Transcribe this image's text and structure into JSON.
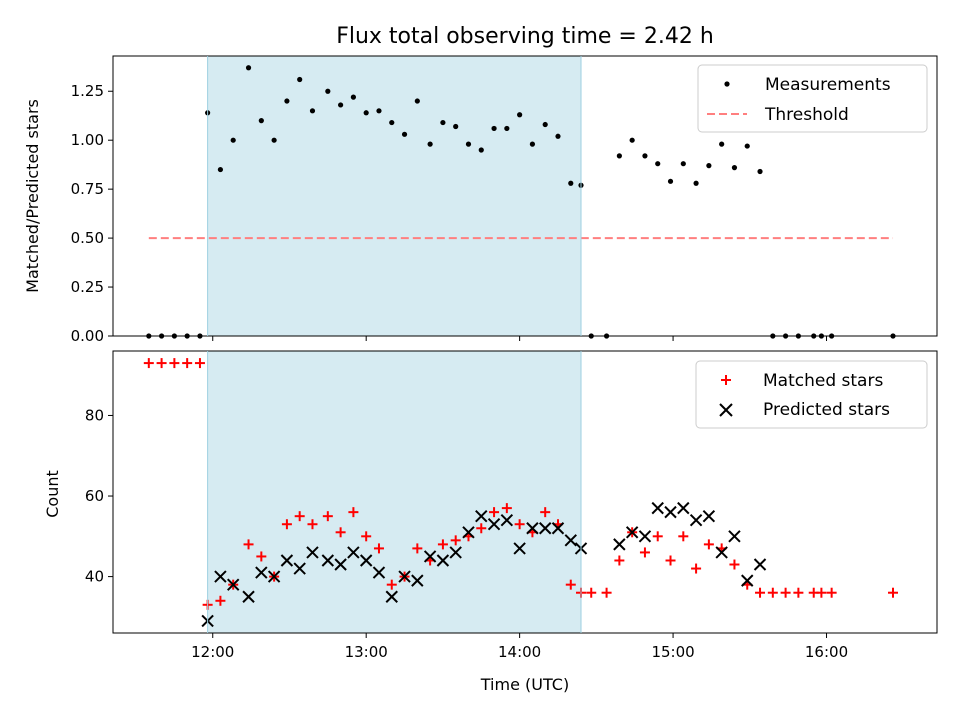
{
  "chart_data": [
    {
      "type": "scatter",
      "title": "Flux total observing time = 2.42 h",
      "ylabel": "Matched/Predicted stars",
      "xlim_hours": [
        11.35,
        16.72
      ],
      "ylim": [
        0,
        1.43
      ],
      "yticks": [
        "0.00",
        "0.25",
        "0.50",
        "0.75",
        "1.00",
        "1.25"
      ],
      "shaded_interval": [
        "11:58",
        "14:24"
      ],
      "shade_color": "#add8e6",
      "legend_position": "top-right",
      "series": [
        {
          "name": "Measurements",
          "marker": "dot",
          "color": "#000000",
          "x": [
            "11:35",
            "11:40",
            "11:45",
            "11:50",
            "11:55",
            "11:58",
            "12:03",
            "12:08",
            "12:14",
            "12:19",
            "12:24",
            "12:29",
            "12:34",
            "12:39",
            "12:45",
            "12:50",
            "12:55",
            "13:00",
            "13:05",
            "13:10",
            "13:15",
            "13:20",
            "13:25",
            "13:30",
            "13:35",
            "13:40",
            "13:45",
            "13:50",
            "13:55",
            "14:00",
            "14:05",
            "14:10",
            "14:15",
            "14:20",
            "14:24",
            "14:28",
            "14:34",
            "14:39",
            "14:44",
            "14:49",
            "14:54",
            "14:59",
            "15:04",
            "15:09",
            "15:14",
            "15:19",
            "15:24",
            "15:29",
            "15:34",
            "15:39",
            "15:44",
            "15:49",
            "15:55",
            "15:58",
            "16:02",
            "16:26"
          ],
          "y": [
            0,
            0,
            0,
            0,
            0,
            1.14,
            0.85,
            1.0,
            1.37,
            1.1,
            1.0,
            1.2,
            1.31,
            1.15,
            1.25,
            1.18,
            1.22,
            1.14,
            1.15,
            1.09,
            1.03,
            1.2,
            0.98,
            1.09,
            1.07,
            0.98,
            0.95,
            1.06,
            1.06,
            1.13,
            0.98,
            1.08,
            1.02,
            0.78,
            0.77,
            0,
            0,
            0.92,
            1.0,
            0.92,
            0.88,
            0.79,
            0.88,
            0.78,
            0.87,
            0.98,
            0.86,
            0.97,
            0.84,
            0,
            0,
            0,
            0,
            0,
            0,
            0
          ]
        },
        {
          "name": "Threshold",
          "marker": "dashed-line",
          "color": "#ff7f7f",
          "x": [
            "11:35",
            "16:26"
          ],
          "y": [
            0.5,
            0.5
          ]
        }
      ]
    },
    {
      "type": "scatter",
      "xlabel": "Time (UTC)",
      "ylabel": "Count",
      "xlim_hours": [
        11.35,
        16.72
      ],
      "ylim": [
        26,
        96
      ],
      "yticks": [
        "40",
        "60",
        "80"
      ],
      "xticks": [
        "12:00",
        "13:00",
        "14:00",
        "15:00",
        "16:00"
      ],
      "shaded_interval": [
        "11:58",
        "14:24"
      ],
      "shade_color": "#add8e6",
      "legend_position": "top-right",
      "series": [
        {
          "name": "Matched stars",
          "marker": "plus",
          "color": "#ff0000",
          "x": [
            "11:35",
            "11:40",
            "11:45",
            "11:50",
            "11:55",
            "11:58",
            "12:03",
            "12:08",
            "12:14",
            "12:19",
            "12:24",
            "12:29",
            "12:34",
            "12:39",
            "12:45",
            "12:50",
            "12:55",
            "13:00",
            "13:05",
            "13:10",
            "13:15",
            "13:20",
            "13:25",
            "13:30",
            "13:35",
            "13:40",
            "13:45",
            "13:50",
            "13:55",
            "14:00",
            "14:05",
            "14:10",
            "14:15",
            "14:20",
            "14:24",
            "14:28",
            "14:34",
            "14:39",
            "14:44",
            "14:49",
            "14:54",
            "14:59",
            "15:04",
            "15:09",
            "15:14",
            "15:19",
            "15:24",
            "15:29",
            "15:34",
            "15:39",
            "15:44",
            "15:49",
            "15:55",
            "15:58",
            "16:02",
            "16:26"
          ],
          "y": [
            93,
            93,
            93,
            93,
            93,
            33,
            34,
            38,
            48,
            45,
            40,
            53,
            55,
            53,
            55,
            51,
            56,
            50,
            47,
            38,
            40,
            47,
            44,
            48,
            49,
            50,
            52,
            56,
            57,
            53,
            51,
            56,
            53,
            38,
            36,
            36,
            36,
            44,
            51,
            46,
            50,
            44,
            50,
            42,
            48,
            47,
            43,
            38,
            36,
            36,
            36,
            36,
            36,
            36,
            36,
            36
          ]
        },
        {
          "name": "Predicted stars",
          "marker": "x",
          "color": "#000000",
          "x": [
            "11:58",
            "12:03",
            "12:08",
            "12:14",
            "12:19",
            "12:24",
            "12:29",
            "12:34",
            "12:39",
            "12:45",
            "12:50",
            "12:55",
            "13:00",
            "13:05",
            "13:10",
            "13:15",
            "13:20",
            "13:25",
            "13:30",
            "13:35",
            "13:40",
            "13:45",
            "13:50",
            "13:55",
            "14:00",
            "14:05",
            "14:10",
            "14:15",
            "14:20",
            "14:24",
            "14:39",
            "14:44",
            "14:49",
            "14:54",
            "14:59",
            "15:04",
            "15:09",
            "15:14",
            "15:19",
            "15:24",
            "15:29",
            "15:34"
          ],
          "y": [
            29,
            40,
            38,
            35,
            41,
            40,
            44,
            42,
            46,
            44,
            43,
            46,
            44,
            41,
            35,
            40,
            39,
            45,
            44,
            46,
            51,
            55,
            53,
            54,
            47,
            52,
            52,
            52,
            49,
            47,
            48,
            51,
            50,
            57,
            56,
            57,
            54,
            55,
            46,
            50,
            39,
            43
          ]
        }
      ]
    }
  ]
}
